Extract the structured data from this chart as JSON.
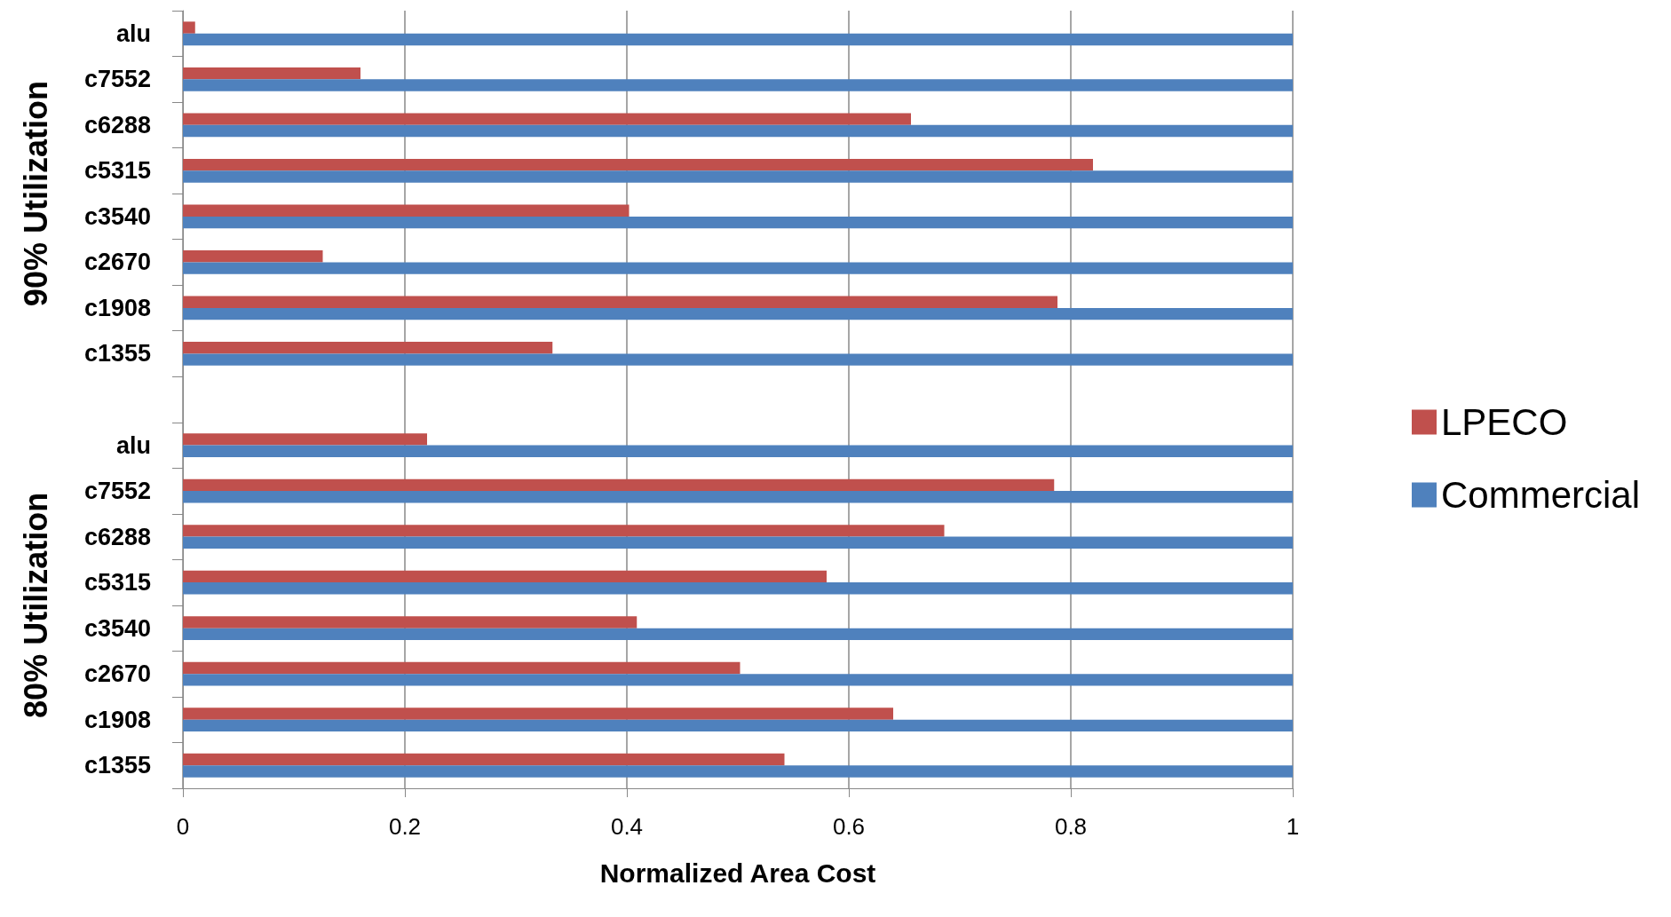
{
  "chart_data": {
    "type": "bar",
    "orientation": "horizontal",
    "xlabel": "Normalized Area Cost",
    "categories": [
      "alu",
      "c7552",
      "c6288",
      "c5315",
      "c3540",
      "c2670",
      "c1908",
      "c1355",
      null,
      "alu",
      "c7552",
      "c6288",
      "c5315",
      "c3540",
      "c2670",
      "c1908",
      "c1355"
    ],
    "series": [
      {
        "name": "LPECO",
        "color": "#c0504d",
        "values": [
          0.011,
          0.16,
          0.656,
          0.82,
          0.402,
          0.126,
          0.788,
          0.333,
          null,
          0.22,
          0.785,
          0.686,
          0.58,
          0.409,
          0.502,
          0.64,
          0.542
        ]
      },
      {
        "name": "Commercial",
        "color": "#4f81bd",
        "values": [
          1,
          1,
          1,
          1,
          1,
          1,
          1,
          1,
          null,
          1,
          1,
          1,
          1,
          1,
          1,
          1,
          1
        ]
      }
    ],
    "xlim": [
      0,
      1
    ],
    "xticks": [
      0,
      0.2,
      0.4,
      0.6,
      0.8,
      1
    ],
    "grid": "x",
    "legend": "right",
    "annotations": [
      "90% Utilization",
      "80% Utilization"
    ]
  }
}
